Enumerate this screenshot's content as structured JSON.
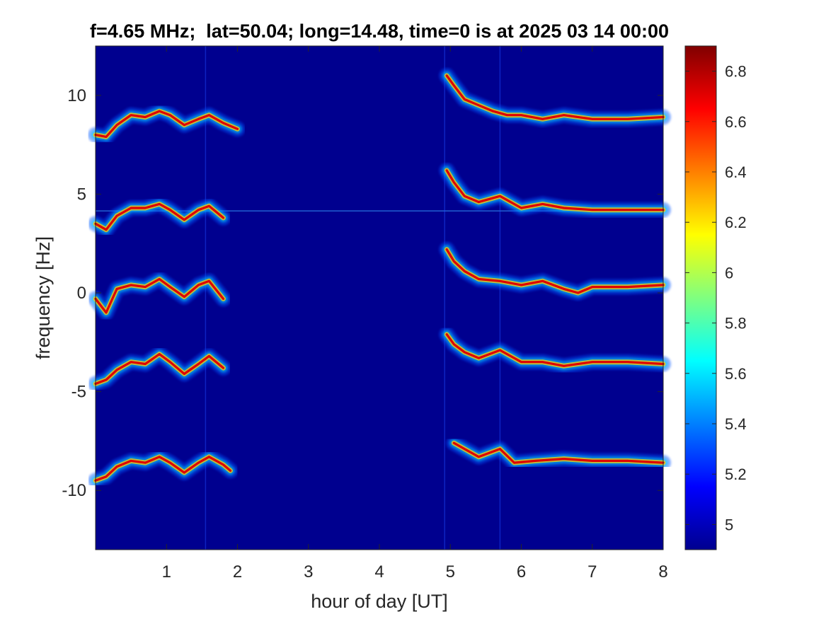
{
  "chart_data": {
    "type": "heatmap",
    "title": "f=4.65 MHz;  lat=50.04; long=14.48, time=0 is at 2025 03 14 00:00",
    "xlabel": "hour of day [UT]",
    "ylabel": "frequency [Hz]",
    "xlim": [
      0,
      8
    ],
    "ylim": [
      -13,
      12.5
    ],
    "xticks": [
      1,
      2,
      3,
      4,
      5,
      6,
      7,
      8
    ],
    "yticks": [
      10,
      5,
      0,
      -5,
      -10
    ],
    "colorbar": {
      "range": [
        4.9,
        6.9
      ],
      "ticks": [
        6.8,
        6.6,
        6.4,
        6.2,
        6,
        5.8,
        5.6,
        5.4,
        5.2,
        5
      ],
      "colormap": "jet"
    },
    "background_color": "#00008f",
    "grid": false,
    "series": [
      {
        "segment": "early",
        "x": [
          0.0,
          0.15,
          0.3,
          0.5,
          0.7,
          0.9,
          1.05,
          1.25,
          1.45,
          1.6,
          1.8,
          2.0
        ],
        "y": [
          8.0,
          7.9,
          8.5,
          9.0,
          8.9,
          9.2,
          9.0,
          8.5,
          8.8,
          9.0,
          8.6,
          8.3
        ]
      },
      {
        "segment": "early",
        "x": [
          0.0,
          0.15,
          0.3,
          0.5,
          0.7,
          0.9,
          1.05,
          1.25,
          1.45,
          1.6,
          1.8
        ],
        "y": [
          3.5,
          3.2,
          3.9,
          4.3,
          4.3,
          4.5,
          4.2,
          3.7,
          4.2,
          4.4,
          3.8
        ]
      },
      {
        "segment": "early",
        "x": [
          0.0,
          0.15,
          0.3,
          0.5,
          0.7,
          0.9,
          1.05,
          1.25,
          1.45,
          1.6,
          1.8
        ],
        "y": [
          -0.3,
          -1.0,
          0.2,
          0.4,
          0.3,
          0.7,
          0.3,
          -0.2,
          0.4,
          0.6,
          -0.3
        ]
      },
      {
        "segment": "early",
        "x": [
          0.0,
          0.15,
          0.3,
          0.5,
          0.7,
          0.9,
          1.05,
          1.25,
          1.45,
          1.6,
          1.8
        ],
        "y": [
          -4.6,
          -4.4,
          -3.9,
          -3.5,
          -3.6,
          -3.1,
          -3.5,
          -4.1,
          -3.6,
          -3.2,
          -3.8
        ]
      },
      {
        "segment": "early",
        "x": [
          0.0,
          0.15,
          0.3,
          0.5,
          0.7,
          0.9,
          1.05,
          1.25,
          1.45,
          1.6,
          1.8,
          1.9
        ],
        "y": [
          -9.5,
          -9.3,
          -8.8,
          -8.5,
          -8.6,
          -8.3,
          -8.6,
          -9.1,
          -8.6,
          -8.3,
          -8.7,
          -9.0
        ]
      },
      {
        "segment": "late",
        "x": [
          4.95,
          5.05,
          5.2,
          5.4,
          5.6,
          5.8,
          6.0,
          6.3,
          6.6,
          7.0,
          7.5,
          8.0
        ],
        "y": [
          11.0,
          10.5,
          9.8,
          9.5,
          9.2,
          9.0,
          9.0,
          8.8,
          9.0,
          8.8,
          8.8,
          8.9
        ]
      },
      {
        "segment": "late",
        "x": [
          4.95,
          5.05,
          5.2,
          5.4,
          5.7,
          6.0,
          6.3,
          6.6,
          7.0,
          7.5,
          8.0
        ],
        "y": [
          6.2,
          5.6,
          4.9,
          4.6,
          4.9,
          4.3,
          4.5,
          4.3,
          4.2,
          4.2,
          4.2
        ]
      },
      {
        "segment": "late",
        "x": [
          4.95,
          5.05,
          5.2,
          5.4,
          5.7,
          6.0,
          6.3,
          6.6,
          6.8,
          7.0,
          7.5,
          8.0
        ],
        "y": [
          2.2,
          1.6,
          1.1,
          0.7,
          0.6,
          0.4,
          0.6,
          0.2,
          0.0,
          0.3,
          0.3,
          0.4
        ]
      },
      {
        "segment": "late",
        "x": [
          4.95,
          5.05,
          5.2,
          5.4,
          5.7,
          6.0,
          6.3,
          6.6,
          7.0,
          7.5,
          8.0
        ],
        "y": [
          -2.1,
          -2.6,
          -3.0,
          -3.3,
          -2.9,
          -3.5,
          -3.5,
          -3.7,
          -3.5,
          -3.5,
          -3.6
        ]
      },
      {
        "segment": "late",
        "x": [
          5.05,
          5.2,
          5.4,
          5.7,
          5.9,
          6.2,
          6.6,
          7.0,
          7.5,
          8.0
        ],
        "y": [
          -7.6,
          -7.9,
          -8.3,
          -7.9,
          -8.6,
          -8.5,
          -8.4,
          -8.5,
          -8.5,
          -8.6
        ]
      }
    ],
    "artifacts": {
      "horizontal_line_y": 4.15,
      "vertical_lines_x": [
        1.55,
        4.92,
        5.7
      ]
    }
  }
}
